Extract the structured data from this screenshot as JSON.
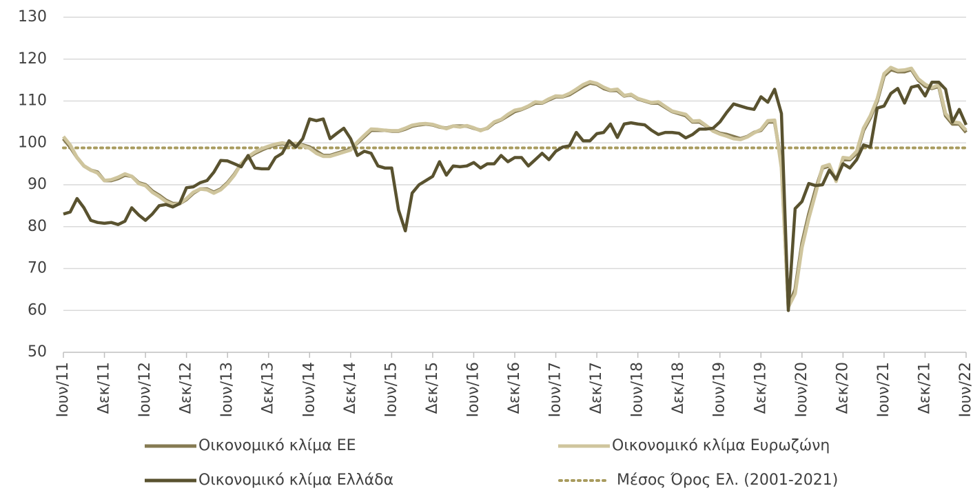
{
  "chart_data": {
    "type": "line",
    "categories": [
      "Ιουν/11",
      null,
      null,
      null,
      null,
      null,
      "Δεκ/11",
      null,
      null,
      null,
      null,
      null,
      "Ιουν/12",
      null,
      null,
      null,
      null,
      null,
      "Δεκ/12",
      null,
      null,
      null,
      null,
      null,
      "Ιουν/13",
      null,
      null,
      null,
      null,
      null,
      "Δεκ/13",
      null,
      null,
      null,
      null,
      null,
      "Ιουν/14",
      null,
      null,
      null,
      null,
      null,
      "Δεκ/14",
      null,
      null,
      null,
      null,
      null,
      "Ιουν/15",
      null,
      null,
      null,
      null,
      null,
      "Δεκ/15",
      null,
      null,
      null,
      null,
      null,
      "Ιουν/16",
      null,
      null,
      null,
      null,
      null,
      "Δεκ/16",
      null,
      null,
      null,
      null,
      null,
      "Ιουν/17",
      null,
      null,
      null,
      null,
      null,
      "Δεκ/17",
      null,
      null,
      null,
      null,
      null,
      "Ιουν/18",
      null,
      null,
      null,
      null,
      null,
      "Δεκ/18",
      null,
      null,
      null,
      null,
      null,
      "Ιουν/19",
      null,
      null,
      null,
      null,
      null,
      "Δεκ/19",
      null,
      null,
      null,
      null,
      null,
      "Ιουν/20",
      null,
      null,
      null,
      null,
      null,
      "Δεκ/20",
      null,
      null,
      null,
      null,
      null,
      "Ιουν/21",
      null,
      null,
      null,
      null,
      null,
      "Δεκ/21",
      null,
      null,
      null,
      null,
      null,
      "Ιουν/22"
    ],
    "series": [
      {
        "name": "Οικονομικό κλίμα ΕΕ",
        "color": "#857a52",
        "values": [
          101,
          99,
          96.5,
          94.5,
          93.5,
          93,
          91,
          91,
          91.5,
          92.3,
          92,
          90.5,
          90,
          88.5,
          87.5,
          86.3,
          85.5,
          85.5,
          86.5,
          88,
          89,
          89,
          88.2,
          89,
          90.5,
          92.5,
          95,
          96.5,
          97.5,
          98.3,
          99,
          99.5,
          99.8,
          99.5,
          99.8,
          99.5,
          99,
          98,
          97,
          97,
          97.5,
          98,
          98.5,
          100,
          101.5,
          103,
          103,
          103,
          102.8,
          102.8,
          103.3,
          104,
          104.3,
          104.5,
          104.3,
          103.8,
          103.5,
          104,
          104,
          104,
          103.5,
          103,
          103.5,
          104.8,
          105.5,
          106.5,
          107.5,
          108,
          108.7,
          109.5,
          109.5,
          110.3,
          111,
          111,
          111.5,
          112.5,
          113.5,
          114.3,
          114,
          113,
          112.5,
          112.5,
          111.2,
          111.5,
          110.5,
          110,
          109.5,
          109.5,
          108.5,
          107.5,
          107,
          106.5,
          105,
          105,
          104,
          103,
          102.3,
          102,
          101.5,
          101,
          101.5,
          102.5,
          103,
          105,
          105,
          95,
          61,
          65,
          76,
          83,
          89,
          94,
          94.5,
          91,
          96,
          96,
          97.5,
          103,
          106,
          110,
          116,
          117.5,
          117,
          117,
          117.5,
          115,
          113.5,
          113,
          113.5,
          106.5,
          104.5,
          104.5,
          102.5
        ]
      },
      {
        "name": "Οικονομικό κλίμα Ευρωζώνη",
        "color": "#cfc59d",
        "values": [
          101.5,
          99.5,
          96.5,
          94.5,
          93.5,
          92.8,
          91,
          91.2,
          91.8,
          92.6,
          92,
          90.3,
          89.8,
          88.2,
          87.2,
          86,
          85.3,
          85.5,
          86.7,
          88.2,
          89,
          88.8,
          88,
          88.8,
          90.3,
          92.3,
          95,
          96.7,
          97.8,
          98.6,
          99.2,
          99.7,
          100,
          99.7,
          99.9,
          99.3,
          98.7,
          97.5,
          96.8,
          96.8,
          97.3,
          97.8,
          98.3,
          100.2,
          101.8,
          103.3,
          103.2,
          103,
          102.9,
          102.9,
          103.5,
          104.2,
          104.5,
          104.6,
          104.4,
          103.9,
          103.4,
          104,
          103.8,
          104.1,
          103.6,
          102.9,
          103.6,
          105,
          105.6,
          106.8,
          107.8,
          108.1,
          108.8,
          109.8,
          109.6,
          110.5,
          111.2,
          111.1,
          111.8,
          112.8,
          113.9,
          114.6,
          114.2,
          113.3,
          112.6,
          112.8,
          111.3,
          111.6,
          110.6,
          110.1,
          109.6,
          109.8,
          108.7,
          107.6,
          107.2,
          106.8,
          105.2,
          105.3,
          104.1,
          102.8,
          102.1,
          101.6,
          101,
          100.8,
          101.4,
          102.4,
          103.2,
          105.3,
          105.4,
          94,
          60.8,
          64,
          75,
          82,
          88,
          94.3,
          94.8,
          90.8,
          96.5,
          96.3,
          98,
          103.5,
          106.5,
          110.5,
          116.5,
          118,
          117.3,
          117.4,
          117.8,
          115.3,
          114,
          113.2,
          113.8,
          107,
          105,
          104.8,
          103
        ]
      },
      {
        "name": "Οικονομικό κλίμα Ελλάδα",
        "color": "#59522f",
        "values": [
          83,
          83.5,
          86.7,
          84.5,
          81.5,
          81,
          80.8,
          81,
          80.5,
          81.3,
          84.5,
          82.8,
          81.5,
          83,
          85,
          85.3,
          84.7,
          85.5,
          89.3,
          89.5,
          90.5,
          91,
          93,
          95.8,
          95.7,
          95,
          94.3,
          97,
          94,
          93.8,
          93.8,
          96.5,
          97.5,
          100.5,
          99,
          101,
          105.7,
          105.3,
          105.7,
          101,
          102.3,
          103.5,
          101,
          97,
          98,
          97.5,
          94.5,
          94,
          94,
          84,
          79,
          88,
          90,
          91,
          92,
          95.5,
          92.3,
          94.5,
          94.3,
          94.5,
          95.3,
          94,
          95,
          95,
          97,
          95.5,
          96.5,
          96.5,
          94.5,
          96,
          97.5,
          96,
          98,
          99,
          99.3,
          102.5,
          100.5,
          100.5,
          102.2,
          102.5,
          104.5,
          101.3,
          104.5,
          104.8,
          104.5,
          104.3,
          103,
          102,
          102.5,
          102.5,
          102.3,
          101.2,
          102,
          103.3,
          103.3,
          103.5,
          105,
          107.3,
          109.3,
          108.8,
          108.3,
          108,
          111,
          109.7,
          112.8,
          107,
          60,
          84.3,
          86,
          90.3,
          89.8,
          90,
          93.5,
          91.3,
          95,
          94,
          96,
          99.5,
          99,
          108.3,
          108.8,
          111.8,
          113,
          109.5,
          113.3,
          113.7,
          111.2,
          114.5,
          114.5,
          112.8,
          105,
          108,
          104.3
        ]
      }
    ],
    "reference_line": {
      "name": "Μέσος Όρος Ελ. (2001-2021)",
      "value": 98.8,
      "color": "#a89b5e"
    },
    "ylim": [
      50,
      130
    ],
    "yticks": [
      50,
      60,
      70,
      80,
      90,
      100,
      110,
      120,
      130
    ],
    "grid": true
  }
}
